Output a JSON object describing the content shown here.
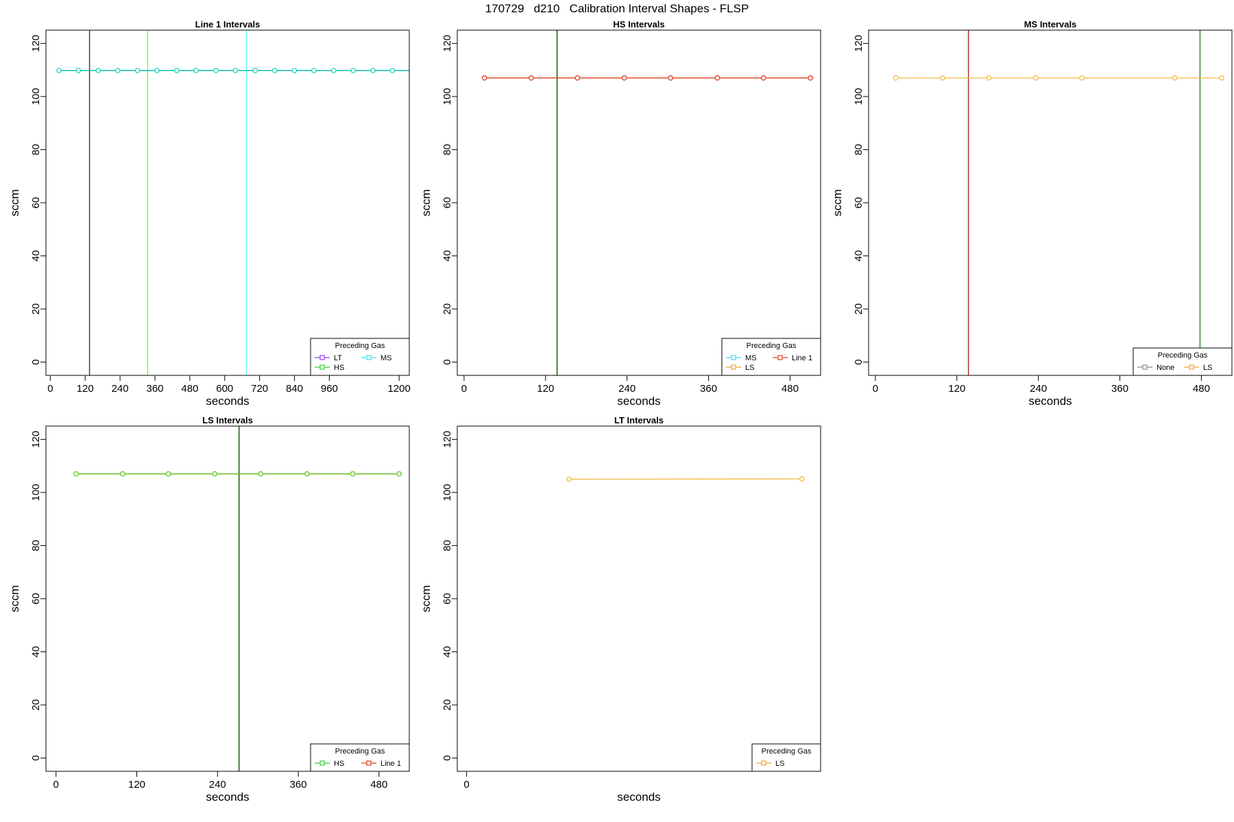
{
  "title": "170729   d210   Calibration Interval Shapes - FLSP",
  "chart_data": [
    {
      "type": "line",
      "title": "Line 1 Intervals",
      "xlabel": "seconds",
      "ylabel": "sccm",
      "xlim": [
        -15,
        1235
      ],
      "ylim": [
        -5,
        125
      ],
      "xticks": [
        "0",
        "120",
        "240",
        "360",
        "480",
        "600",
        "720",
        "840",
        "960",
        "1200"
      ],
      "xtick_values": [
        0,
        120,
        240,
        360,
        480,
        600,
        720,
        840,
        960,
        1200
      ],
      "yticks": [
        0,
        20,
        40,
        60,
        80,
        100,
        120
      ],
      "vlines": [
        {
          "x": 135,
          "color": "#1f5a10"
        },
        {
          "x": 335,
          "color": "#7cfc3c"
        },
        {
          "x": 675,
          "color": "#66f5ea"
        }
      ],
      "series": [
        {
          "color": "#9b30ff",
          "x": [
            30,
            1235
          ],
          "y": [
            109.8,
            109.8
          ],
          "markers": false
        },
        {
          "color": "#2db82d",
          "x": [
            30,
            1235
          ],
          "y": [
            109.8,
            109.8
          ],
          "markers": false
        },
        {
          "color": "#1ed6c4",
          "x": [
            30,
            97,
            165,
            232,
            300,
            367,
            435,
            502,
            570,
            637,
            705,
            772,
            840,
            907,
            975,
            1042,
            1110,
            1177,
            1235
          ],
          "y": [
            109.8,
            109.8,
            109.8,
            109.8,
            109.8,
            109.8,
            109.8,
            109.8,
            109.8,
            109.8,
            109.8,
            109.8,
            109.8,
            109.8,
            109.8,
            109.8,
            109.8,
            109.8,
            109.8
          ],
          "markers": true,
          "marker_count": 18
        }
      ],
      "legend": {
        "title": "Preceding Gas",
        "position": "bottom-right",
        "columns": 2,
        "entries": [
          {
            "label": "LT",
            "color": "#9b30ff"
          },
          {
            "label": "MS",
            "color": "#40e0e8"
          },
          {
            "label": "HS",
            "color": "#32cd32"
          }
        ]
      }
    },
    {
      "type": "line",
      "title": "HS Intervals",
      "xlabel": "seconds",
      "ylabel": "sccm",
      "xlim": [
        -10,
        525
      ],
      "ylim": [
        -5,
        125
      ],
      "xticks": [
        "0",
        "120",
        "240",
        "360",
        "480"
      ],
      "xtick_values": [
        0,
        120,
        240,
        360,
        480
      ],
      "yticks": [
        0,
        20,
        40,
        60,
        80,
        100,
        120
      ],
      "vlines": [
        {
          "x": 137,
          "color": "#1f5a10"
        }
      ],
      "series": [
        {
          "color": "#f0a030",
          "x": [
            30,
            515
          ],
          "y": [
            107,
            107
          ],
          "markers": false
        },
        {
          "color": "#e03a1e",
          "x": [
            30,
            99,
            167,
            236,
            304,
            373,
            441,
            510
          ],
          "y": [
            107,
            107,
            107,
            107,
            107,
            107,
            107,
            107
          ],
          "markers": true
        }
      ],
      "legend": {
        "title": "Preceding Gas",
        "position": "bottom-right",
        "columns": 2,
        "entries": [
          {
            "label": "MS",
            "color": "#40d8f0"
          },
          {
            "label": "Line 1",
            "color": "#e03a1e"
          },
          {
            "label": "LS",
            "color": "#f0a030"
          }
        ]
      }
    },
    {
      "type": "line",
      "title": "MS Intervals",
      "xlabel": "seconds",
      "ylabel": "sccm",
      "xlim": [
        -10,
        525
      ],
      "ylim": [
        -5,
        125
      ],
      "xticks": [
        "0",
        "120",
        "240",
        "360",
        "480"
      ],
      "xtick_values": [
        0,
        120,
        240,
        360,
        480
      ],
      "yticks": [
        0,
        20,
        40,
        60,
        80,
        100,
        120
      ],
      "vlines": [
        {
          "x": 137,
          "color": "#b03030"
        },
        {
          "x": 478,
          "color": "#2e8b2e"
        }
      ],
      "series": [
        {
          "color": "#f5b942",
          "x": [
            30,
            99,
            167,
            236,
            304,
            441,
            510
          ],
          "y": [
            107,
            107,
            107,
            107,
            107,
            107,
            107
          ],
          "markers": true
        }
      ],
      "legend": {
        "title": "Preceding Gas",
        "position": "bottom-right",
        "columns": 2,
        "entries": [
          {
            "label": "None",
            "color": "#888888"
          },
          {
            "label": "LS",
            "color": "#f0a030"
          }
        ]
      }
    },
    {
      "type": "line",
      "title": "LS Intervals",
      "xlabel": "seconds",
      "ylabel": "sccm",
      "xlim": [
        -15,
        525
      ],
      "ylim": [
        -5,
        125
      ],
      "xticks": [
        "0",
        "120",
        "240",
        "360",
        "480"
      ],
      "xtick_values": [
        0,
        120,
        240,
        360,
        480
      ],
      "yticks": [
        0,
        20,
        40,
        60,
        80,
        100,
        120
      ],
      "vlines": [
        {
          "x": 272,
          "color": "#1f5a10"
        }
      ],
      "series": [
        {
          "color": "#c0392b",
          "x": [
            30,
            510
          ],
          "y": [
            107,
            107
          ],
          "markers": false
        },
        {
          "color": "#5ccc1e",
          "x": [
            30,
            99,
            167,
            236,
            304,
            373,
            441,
            510
          ],
          "y": [
            107,
            107,
            107,
            107,
            107,
            107,
            107,
            107
          ],
          "markers": true
        }
      ],
      "legend": {
        "title": "Preceding Gas",
        "position": "bottom-right",
        "columns": 2,
        "entries": [
          {
            "label": "HS",
            "color": "#32cd32"
          },
          {
            "label": "Line 1",
            "color": "#e03a1e"
          }
        ]
      }
    },
    {
      "type": "line",
      "title": "LT Intervals",
      "xlabel": "seconds",
      "ylabel": "sccm",
      "xlim": [
        -0.5,
        19
      ],
      "ylim": [
        -5,
        125
      ],
      "xticks": [
        "0"
      ],
      "xtick_values": [
        0
      ],
      "yticks": [
        0,
        20,
        40,
        60,
        80,
        100,
        120
      ],
      "vlines": [],
      "series": [
        {
          "color": "#f5b942",
          "x": [
            5.5,
            18
          ],
          "y": [
            105,
            105.1
          ],
          "markers": true
        }
      ],
      "legend": {
        "title": "Preceding Gas",
        "position": "bottom-right",
        "columns": 1,
        "entries": [
          {
            "label": "LS",
            "color": "#f0a030"
          }
        ]
      }
    }
  ]
}
